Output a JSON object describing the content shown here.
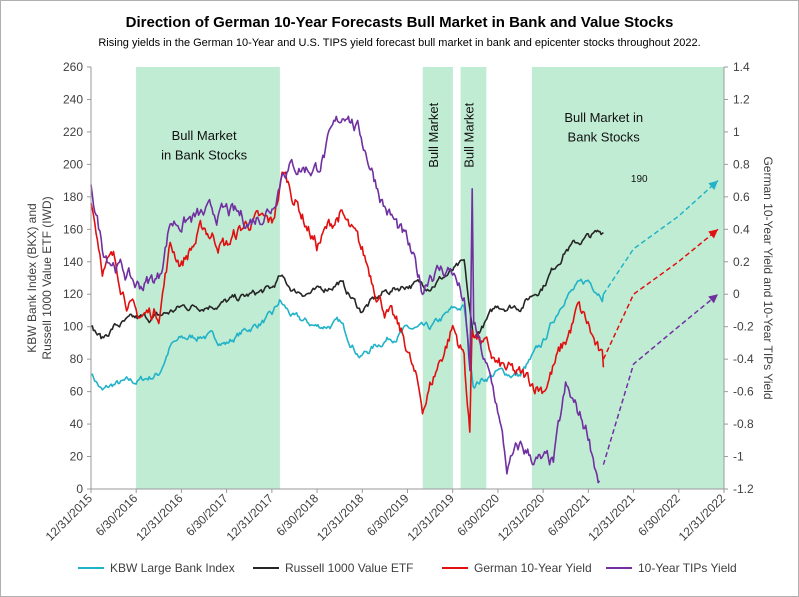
{
  "chart_data": {
    "type": "line",
    "title": "Direction of German 10-Year Forecasts Bull Market in Bank and Value Stocks",
    "subtitle": "Rising yields in the German 10-Year and U.S. TIPS yield forecast bull market in bank and epicenter stocks throughout 2022.",
    "ylabel_left": "KBW Bank Index (BKX) and Russell 1000 Value ETF (IWD)",
    "ylabel_right": "German 10-Year Yield and 10-Year TIPs Yield",
    "ylim_left": [
      0,
      260
    ],
    "ylim_right": [
      -1.2,
      1.4
    ],
    "yticks_left": [
      "0",
      "20",
      "40",
      "60",
      "80",
      "100",
      "120",
      "140",
      "160",
      "180",
      "200",
      "220",
      "240",
      "260"
    ],
    "yticks_right": [
      "-1.2",
      "-1",
      "-0.8",
      "-0.6",
      "-0.4",
      "-0.2",
      "0",
      "0.2",
      "0.4",
      "0.6",
      "0.8",
      "1",
      "1.2",
      "1.4"
    ],
    "x_tick_labels": [
      "12/31/2015",
      "6/30/2016",
      "12/31/2016",
      "6/30/2017",
      "12/31/2017",
      "6/30/2018",
      "12/31/2018",
      "6/30/2019",
      "12/31/2019",
      "6/30/2020",
      "12/31/2020",
      "6/30/2021",
      "12/31/2021",
      "6/30/2022",
      "12/31/2022"
    ],
    "grid": false,
    "legend_position": "bottom",
    "shaded_regions": [
      {
        "start": "2016-06-30",
        "end": "2018-02-01",
        "color": "#c1ecd4"
      },
      {
        "start": "2019-09-01",
        "end": "2020-01-01",
        "color": "#c1ecd4"
      },
      {
        "start": "2020-02-01",
        "end": "2020-05-15",
        "color": "#c1ecd4"
      },
      {
        "start": "2020-11-15",
        "end": "2022-12-31",
        "color": "#c1ecd4"
      }
    ],
    "annotations": [
      {
        "text": "Bull Market",
        "x": "2017-04-01",
        "y": 215
      },
      {
        "text": "in Bank Stocks",
        "x": "2017-04-01",
        "y": 203
      },
      {
        "text": "Bull Market",
        "x": "2019-11-01",
        "y": 238,
        "rotation": -90
      },
      {
        "text": "Bull Market",
        "x": "2020-03-24",
        "y": 238,
        "rotation": -90
      },
      {
        "text": "Bull Market in",
        "x": "2021-09-01",
        "y": 226
      },
      {
        "text": "Bank Stocks",
        "x": "2021-09-01",
        "y": 214
      },
      {
        "text": "190",
        "x": "2021-12-20",
        "y": 189
      }
    ],
    "series": [
      {
        "name": "KBW Large Bank Index",
        "axis": "left",
        "color": "#22b3c8",
        "points": [
          [
            "2015-12-31",
            72
          ],
          [
            "2016-02-15",
            60
          ],
          [
            "2016-03-31",
            64
          ],
          [
            "2016-06-30",
            66
          ],
          [
            "2016-09-30",
            71
          ],
          [
            "2016-11-15",
            88
          ],
          [
            "2016-12-31",
            92
          ],
          [
            "2017-03-31",
            95
          ],
          [
            "2017-06-30",
            90
          ],
          [
            "2017-09-30",
            99
          ],
          [
            "2017-12-31",
            106
          ],
          [
            "2018-01-31",
            115
          ],
          [
            "2018-03-31",
            105
          ],
          [
            "2018-06-30",
            100
          ],
          [
            "2018-09-30",
            102
          ],
          [
            "2018-12-24",
            82
          ],
          [
            "2019-03-31",
            92
          ],
          [
            "2019-06-30",
            98
          ],
          [
            "2019-09-30",
            98
          ],
          [
            "2019-12-31",
            110
          ],
          [
            "2020-02-15",
            112
          ],
          [
            "2020-03-23",
            65
          ],
          [
            "2020-06-30",
            72
          ],
          [
            "2020-09-30",
            70
          ],
          [
            "2020-12-31",
            90
          ],
          [
            "2021-03-31",
            120
          ],
          [
            "2021-06-30",
            128
          ],
          [
            "2021-08-31",
            120
          ]
        ]
      },
      {
        "name": "Russell 1000 Value ETF",
        "axis": "left",
        "color": "#262626",
        "points": [
          [
            "2015-12-31",
            99
          ],
          [
            "2016-02-15",
            92
          ],
          [
            "2016-03-31",
            100
          ],
          [
            "2016-06-30",
            104
          ],
          [
            "2016-09-30",
            106
          ],
          [
            "2016-12-31",
            112
          ],
          [
            "2017-06-30",
            115
          ],
          [
            "2017-12-31",
            123
          ],
          [
            "2018-01-31",
            130
          ],
          [
            "2018-03-31",
            122
          ],
          [
            "2018-06-30",
            121
          ],
          [
            "2018-09-30",
            128
          ],
          [
            "2018-12-24",
            110
          ],
          [
            "2019-03-31",
            121
          ],
          [
            "2019-06-30",
            126
          ],
          [
            "2019-09-30",
            126
          ],
          [
            "2019-12-31",
            134
          ],
          [
            "2020-02-15",
            138
          ],
          [
            "2020-03-23",
            92
          ],
          [
            "2020-06-30",
            113
          ],
          [
            "2020-09-30",
            113
          ],
          [
            "2020-12-31",
            126
          ],
          [
            "2021-03-31",
            148
          ],
          [
            "2021-06-30",
            155
          ],
          [
            "2021-08-31",
            158
          ]
        ]
      },
      {
        "name": "German 10-Year Yield",
        "axis": "right",
        "color": "#e01010",
        "points": [
          [
            "2015-12-31",
            0.6
          ],
          [
            "2016-02-15",
            0.2
          ],
          [
            "2016-03-31",
            0.2
          ],
          [
            "2016-06-30",
            -0.15
          ],
          [
            "2016-09-30",
            -0.1
          ],
          [
            "2016-11-15",
            0.3
          ],
          [
            "2016-12-31",
            0.2
          ],
          [
            "2017-03-31",
            0.4
          ],
          [
            "2017-06-30",
            0.3
          ],
          [
            "2017-09-30",
            0.45
          ],
          [
            "2017-12-31",
            0.42
          ],
          [
            "2018-02-15",
            0.75
          ],
          [
            "2018-06-30",
            0.3
          ],
          [
            "2018-09-30",
            0.5
          ],
          [
            "2018-12-31",
            0.24
          ],
          [
            "2019-03-31",
            -0.07
          ],
          [
            "2019-06-30",
            -0.33
          ],
          [
            "2019-08-31",
            -0.7
          ],
          [
            "2019-09-30",
            -0.57
          ],
          [
            "2019-12-31",
            -0.2
          ],
          [
            "2020-02-15",
            -0.38
          ],
          [
            "2020-03-09",
            -0.86
          ],
          [
            "2020-03-18",
            -0.2
          ],
          [
            "2020-06-30",
            -0.45
          ],
          [
            "2020-09-30",
            -0.52
          ],
          [
            "2020-12-31",
            -0.57
          ],
          [
            "2021-03-31",
            -0.3
          ],
          [
            "2021-05-20",
            -0.1
          ],
          [
            "2021-06-30",
            -0.2
          ],
          [
            "2021-08-31",
            -0.45
          ]
        ]
      },
      {
        "name": "10-Year TIPs Yield",
        "axis": "right",
        "color": "#7030a0",
        "points": [
          [
            "2015-12-31",
            0.7
          ],
          [
            "2016-02-15",
            0.3
          ],
          [
            "2016-06-30",
            0.05
          ],
          [
            "2016-09-30",
            0.1
          ],
          [
            "2016-11-15",
            0.45
          ],
          [
            "2016-12-31",
            0.45
          ],
          [
            "2017-06-30",
            0.5
          ],
          [
            "2017-09-30",
            0.45
          ],
          [
            "2017-12-31",
            0.55
          ],
          [
            "2018-02-15",
            0.8
          ],
          [
            "2018-06-30",
            0.78
          ],
          [
            "2018-10-31",
            1.15
          ],
          [
            "2018-12-31",
            0.95
          ],
          [
            "2019-03-31",
            0.55
          ],
          [
            "2019-06-30",
            0.3
          ],
          [
            "2019-08-31",
            0.02
          ],
          [
            "2019-09-30",
            0.15
          ],
          [
            "2019-12-31",
            0.15
          ],
          [
            "2020-02-15",
            -0.05
          ],
          [
            "2020-03-10",
            -0.5
          ],
          [
            "2020-03-19",
            0.62
          ],
          [
            "2020-03-25",
            -0.2
          ],
          [
            "2020-06-30",
            -0.7
          ],
          [
            "2020-08-06",
            -1.08
          ],
          [
            "2020-09-30",
            -0.95
          ],
          [
            "2020-12-31",
            -1.05
          ],
          [
            "2021-02-10",
            -1.05
          ],
          [
            "2021-03-31",
            -0.6
          ],
          [
            "2021-06-30",
            -0.85
          ],
          [
            "2021-08-15",
            -1.15
          ]
        ]
      }
    ],
    "forecast_lines": [
      {
        "name": "KBW Large Bank Index forecast",
        "axis": "left",
        "color": "#22b3c8",
        "points": [
          [
            "2021-08-31",
            120
          ],
          [
            "2021-12-31",
            148
          ],
          [
            "2022-06-30",
            168
          ],
          [
            "2022-12-31",
            190
          ]
        ]
      },
      {
        "name": "German 10-Year Yield forecast",
        "axis": "right",
        "color": "#e01010",
        "points": [
          [
            "2021-08-31",
            -0.4
          ],
          [
            "2021-12-31",
            0.0
          ],
          [
            "2022-06-30",
            0.2
          ],
          [
            "2022-12-31",
            0.4
          ]
        ]
      },
      {
        "name": "10-Year TIPs Yield forecast",
        "axis": "right",
        "color": "#7030a0",
        "points": [
          [
            "2021-08-31",
            -1.05
          ],
          [
            "2021-12-31",
            -0.43
          ],
          [
            "2022-06-30",
            -0.2
          ],
          [
            "2022-12-31",
            0.0
          ]
        ]
      }
    ]
  }
}
